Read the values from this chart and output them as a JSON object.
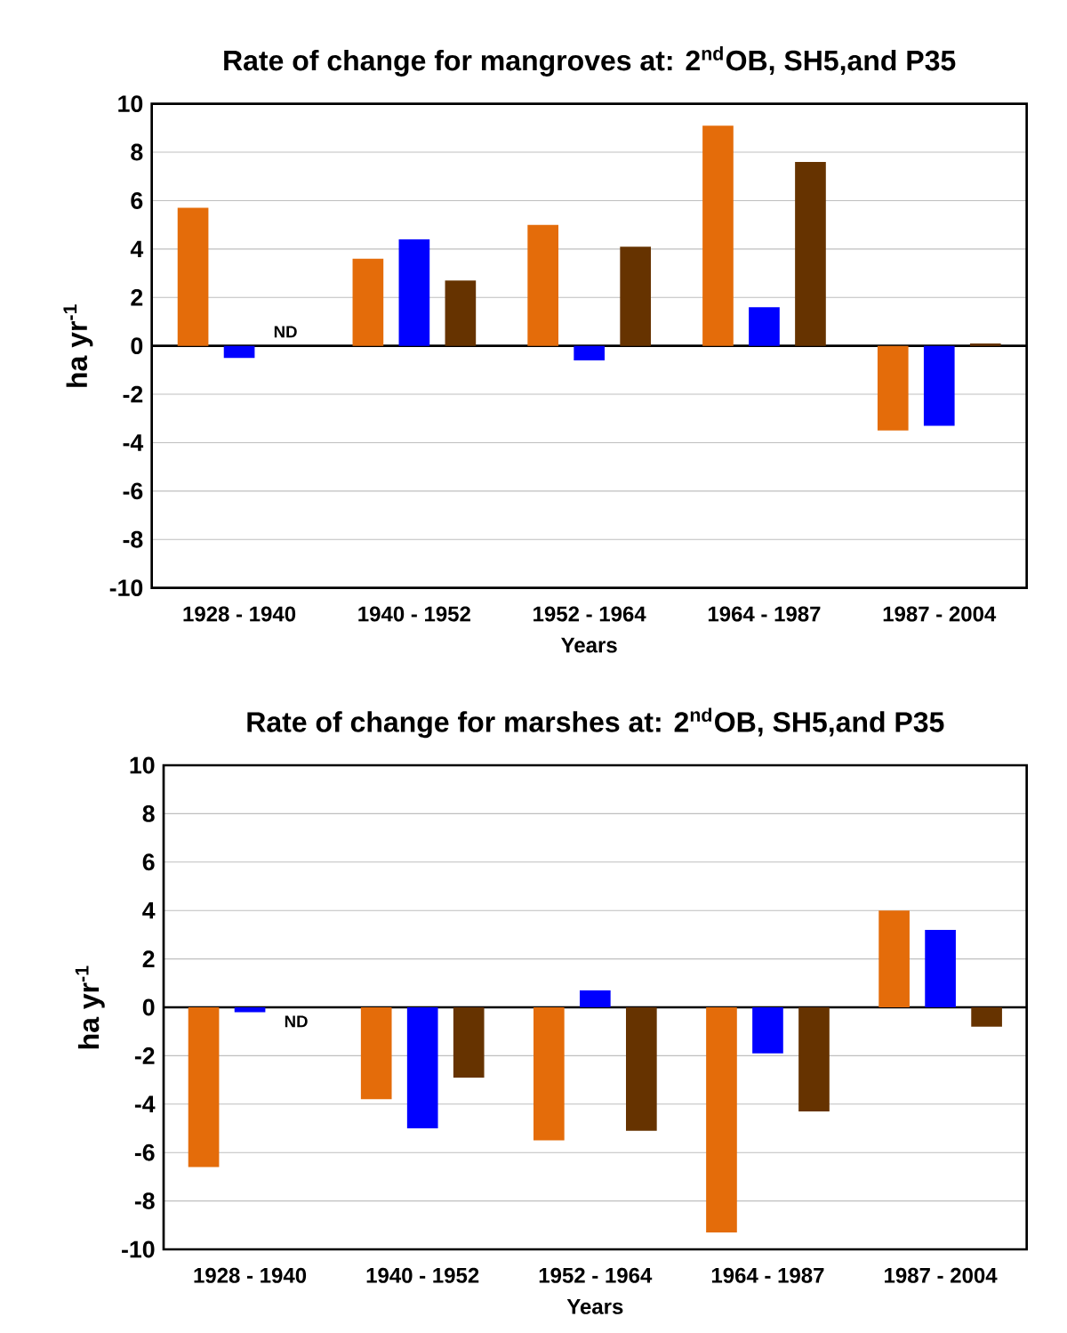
{
  "chart_data": [
    {
      "type": "bar",
      "title": "Rate of change for mangroves at: 2$^{nd}$OB, SH5,and P35",
      "xlabel": "Years",
      "ylabel": "ha yr$^{-1}$",
      "categories": [
        "1928 - 1940",
        "1940 - 1952",
        "1952 - 1964",
        "1964 - 1987",
        "1987 - 2004"
      ],
      "series": [
        {
          "color": "#e46c0a",
          "values": [
            5.7,
            3.6,
            5.0,
            9.1,
            -3.5
          ]
        },
        {
          "color": "#0000ff",
          "values": [
            -0.5,
            4.4,
            -0.6,
            1.6,
            -3.3
          ]
        },
        {
          "color": "#663300",
          "values": [
            null,
            2.7,
            4.1,
            7.6,
            0.1
          ]
        }
      ],
      "ylim": [
        -10,
        10
      ],
      "yticks": [
        -10,
        -8,
        -6,
        -4,
        -2,
        0,
        2,
        4,
        6,
        8,
        10
      ],
      "grid": "y",
      "annotations": [
        "ND"
      ]
    },
    {
      "type": "bar",
      "title": "Rate of change for marshes at: 2$^{nd}$OB, SH5,and P35",
      "xlabel": "Years",
      "ylabel": "ha yr$^{-1}$",
      "categories": [
        "1928 - 1940",
        "1940 - 1952",
        "1952 - 1964",
        "1964 - 1987",
        "1987 - 2004"
      ],
      "series": [
        {
          "color": "#e46c0a",
          "values": [
            -6.6,
            -3.8,
            -5.5,
            -9.3,
            4.0
          ]
        },
        {
          "color": "#0000ff",
          "values": [
            -0.2,
            -5.0,
            0.7,
            -1.9,
            3.2
          ]
        },
        {
          "color": "#663300",
          "values": [
            null,
            -2.9,
            -5.1,
            -4.3,
            -0.8
          ]
        }
      ],
      "ylim": [
        -10,
        10
      ],
      "yticks": [
        -10,
        -8,
        -6,
        -4,
        -2,
        0,
        2,
        4,
        6,
        8,
        10
      ],
      "grid": "y",
      "annotations": [
        "ND"
      ]
    }
  ]
}
